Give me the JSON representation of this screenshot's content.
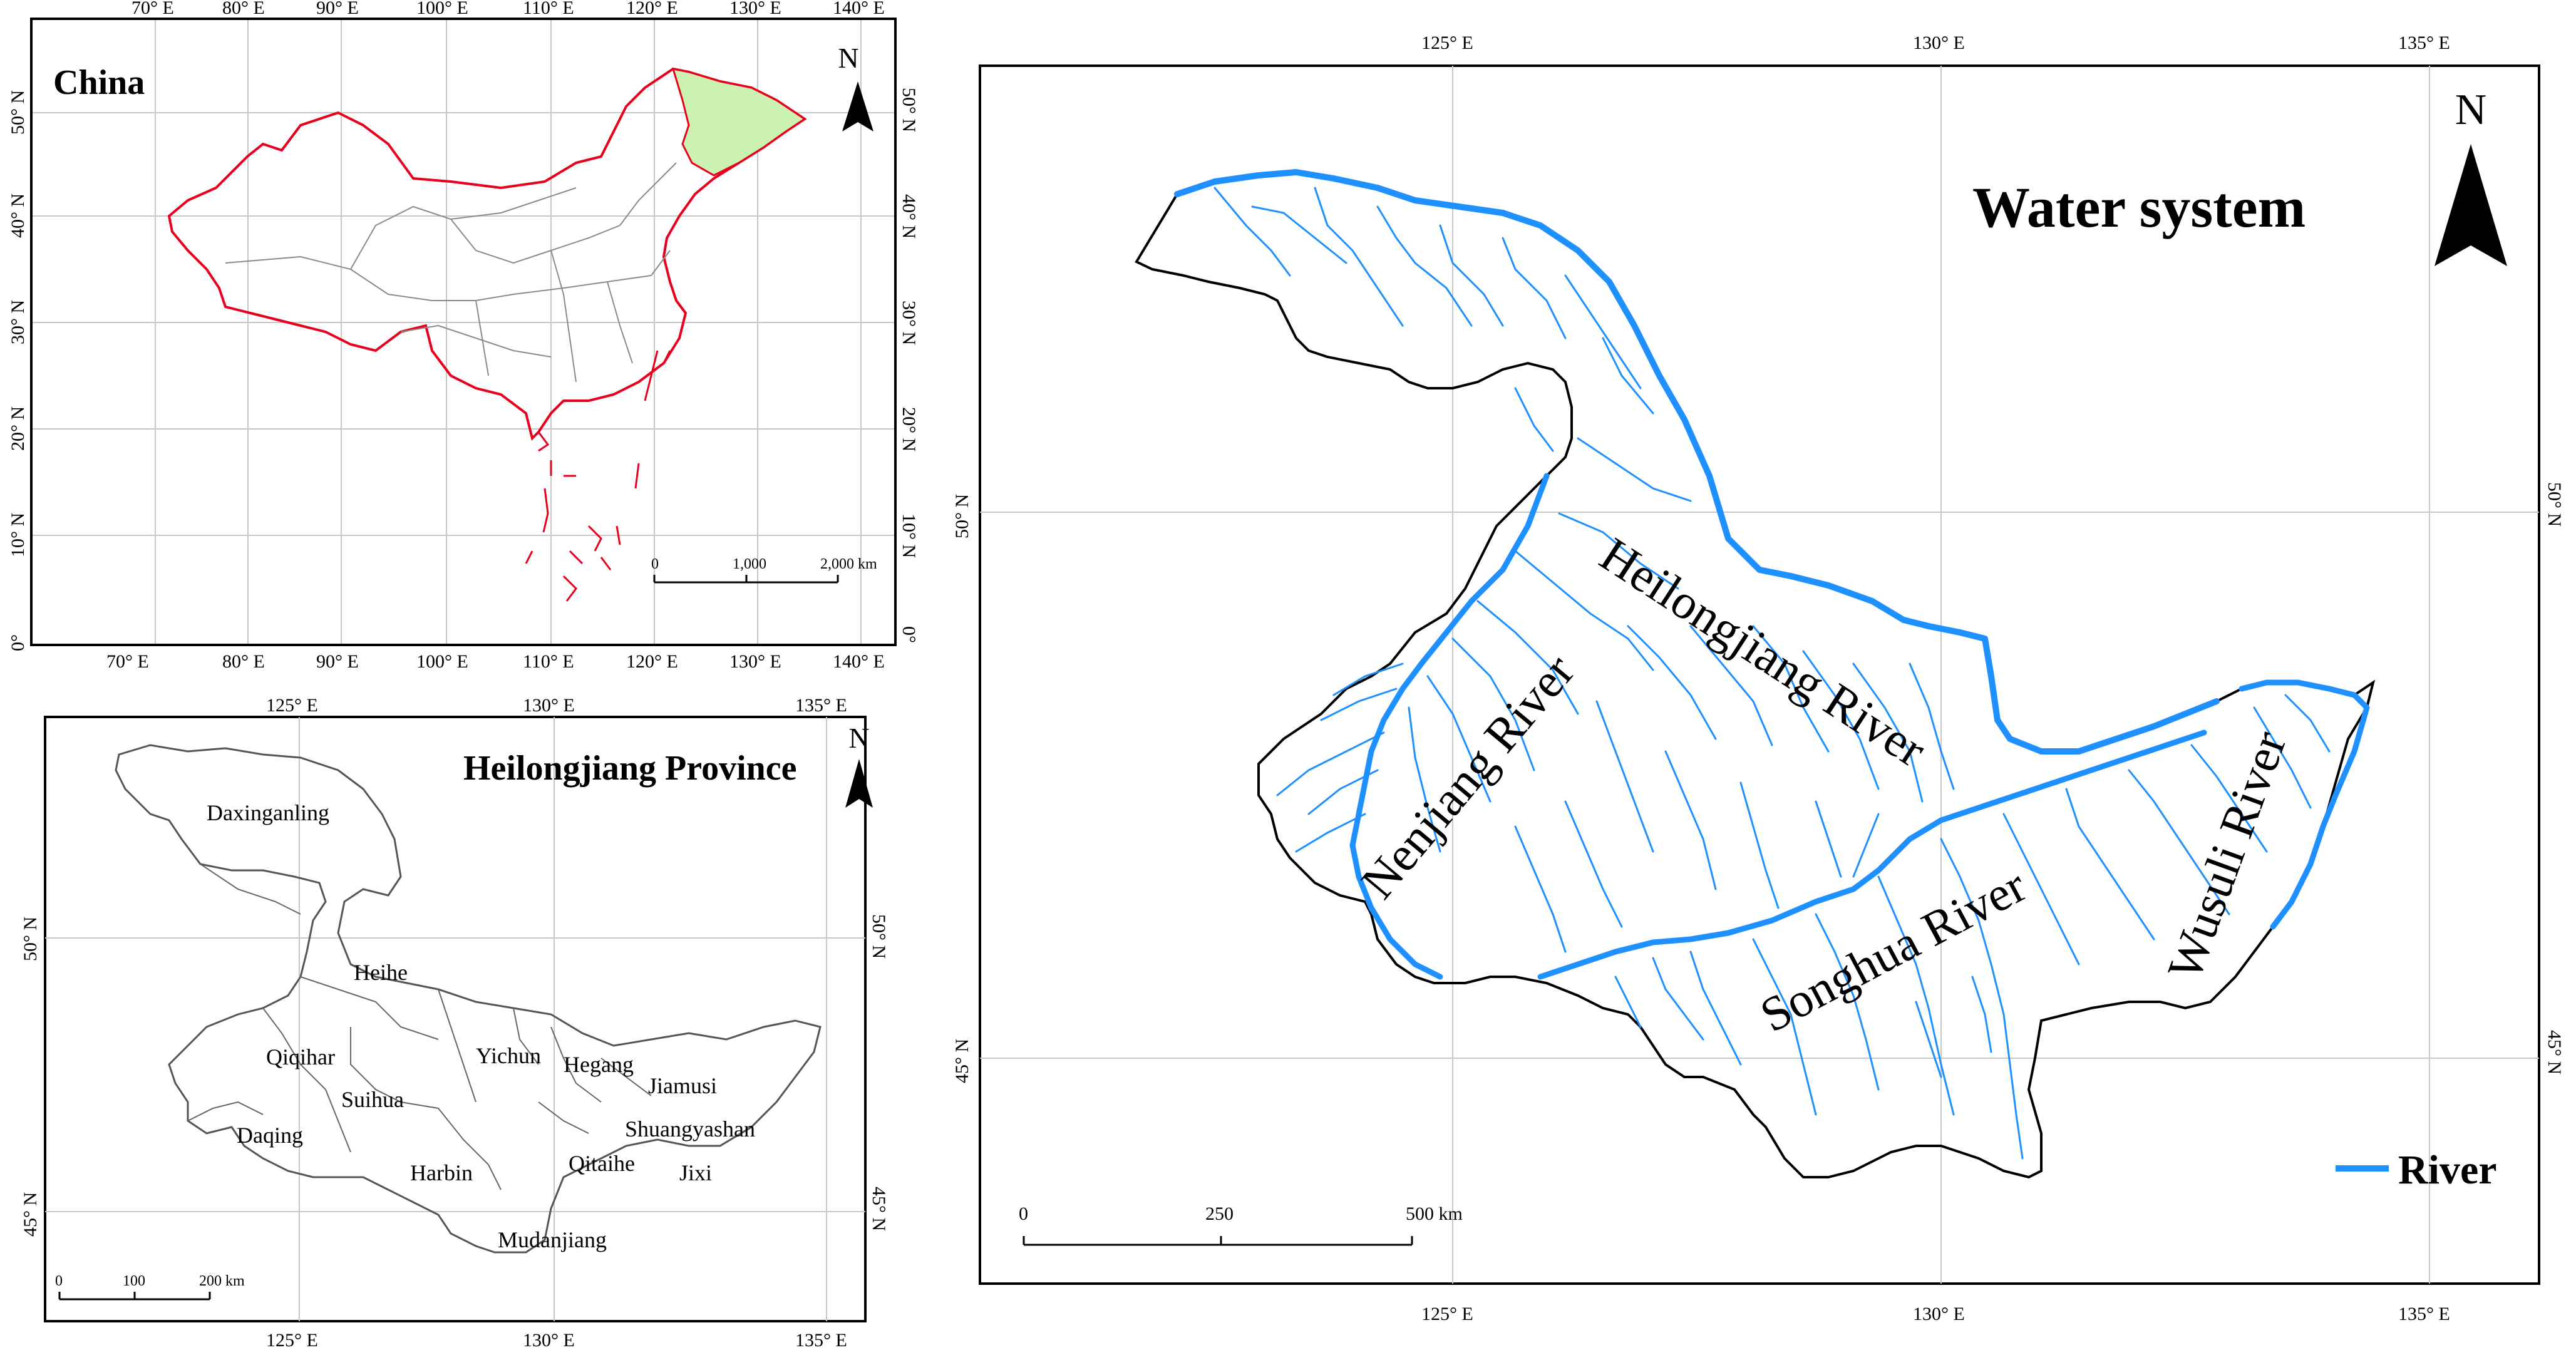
{
  "panels": {
    "china": {
      "title": "China",
      "north_label": "N",
      "lon_ticks": [
        "70° E",
        "80° E",
        "90° E",
        "100° E",
        "110° E",
        "120° E",
        "130° E",
        "140° E"
      ],
      "lat_ticks": [
        "50° N",
        "40° N",
        "30° N",
        "20° N",
        "10° N",
        "0°"
      ],
      "scale": {
        "labels": [
          "0",
          "1,000",
          "2,000 km"
        ]
      },
      "colors": {
        "border": "#e8001c",
        "heilongjiang_fill": "#ccf2b3",
        "provinces": "#8a8a8a"
      }
    },
    "heilongjiang": {
      "title": "Heilongjiang Province",
      "north_label": "N",
      "lon_ticks": [
        "125° E",
        "130° E",
        "135° E"
      ],
      "lat_ticks": [
        "50° N",
        "45° N"
      ],
      "scale": {
        "labels": [
          "0",
          "100",
          "200 km"
        ]
      },
      "cities": [
        "Daxinganling",
        "Heihe",
        "Qiqihar",
        "Yichun",
        "Hegang",
        "Jiamusi",
        "Suihua",
        "Daqing",
        "Shuangyashan",
        "Harbin",
        "Qitaihe",
        "Jixi",
        "Mudanjiang"
      ]
    },
    "water": {
      "title": "Water system",
      "north_label": "N",
      "lon_ticks": [
        "125° E",
        "130° E",
        "135° E"
      ],
      "lat_ticks": [
        "50° N",
        "45° N"
      ],
      "scale": {
        "labels": [
          "0",
          "250",
          "500 km"
        ]
      },
      "rivers": {
        "heilongjiang": "Heilongjiang River",
        "nenjiang": "Nenjiang River",
        "songhua": "Songhua River",
        "wusuli": "Wusuli River"
      },
      "legend": {
        "label": "River",
        "color": "#1e90ff"
      }
    }
  }
}
